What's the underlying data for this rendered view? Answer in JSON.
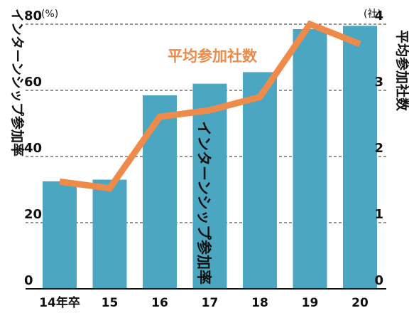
{
  "chart_data": {
    "type": "bar",
    "categories": [
      "14年卒",
      "15",
      "16",
      "17",
      "18",
      "19",
      "20"
    ],
    "series": [
      {
        "name": "インターンシップ参加率",
        "chart_type": "bar",
        "axis": "left",
        "values": [
          32.5,
          33,
          58.5,
          62,
          65.5,
          78.5,
          79.5
        ]
      },
      {
        "name": "平均参加社数",
        "chart_type": "line",
        "axis": "right",
        "values": [
          1.62,
          1.52,
          2.6,
          2.7,
          2.9,
          4.0,
          3.7
        ]
      }
    ],
    "ylabel": "インターンシップ参加率",
    "ylabel_right": "平均参加社数",
    "ylim": [
      0,
      80
    ],
    "ylim_right": [
      0,
      4
    ],
    "y_ticks": [
      "0",
      "20",
      "40",
      "60",
      "80"
    ],
    "y_ticks_right": [
      "0",
      "1",
      "2",
      "3",
      "4"
    ],
    "y_unit": "(%)",
    "y_unit_right": "(社)",
    "grid": true,
    "colors": {
      "bar": "#4aa6c1",
      "line": "#ef8b4a",
      "text": "#111111",
      "grid": "#555555"
    }
  }
}
